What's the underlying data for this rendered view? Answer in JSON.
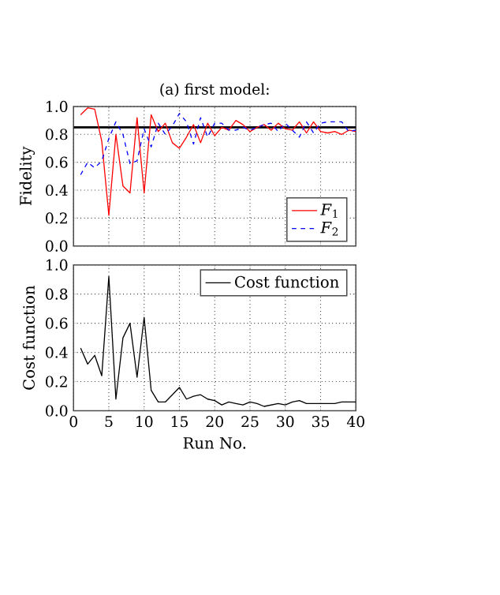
{
  "chart_data": [
    {
      "type": "line",
      "title": "(a) first model:",
      "ylabel": "Fidelity",
      "x": [
        1,
        2,
        3,
        4,
        5,
        6,
        7,
        8,
        9,
        10,
        11,
        12,
        13,
        14,
        15,
        16,
        17,
        18,
        19,
        20,
        21,
        22,
        23,
        24,
        25,
        26,
        27,
        28,
        29,
        30,
        31,
        32,
        33,
        34,
        35,
        36,
        37,
        38,
        39,
        40
      ],
      "series": [
        {
          "name": "*F*$_{1}$",
          "color": "#ff0000",
          "line_style": "solid",
          "values": [
            0.94,
            0.99,
            0.98,
            0.75,
            0.22,
            0.8,
            0.43,
            0.38,
            0.92,
            0.38,
            0.94,
            0.82,
            0.88,
            0.74,
            0.7,
            0.78,
            0.87,
            0.74,
            0.88,
            0.79,
            0.85,
            0.83,
            0.9,
            0.87,
            0.82,
            0.85,
            0.87,
            0.83,
            0.88,
            0.84,
            0.83,
            0.89,
            0.81,
            0.89,
            0.82,
            0.81,
            0.82,
            0.8,
            0.83,
            0.82
          ]
        },
        {
          "name": "*F*$_{2}$",
          "color": "#0000ff",
          "line_style": "dashed",
          "values": [
            0.51,
            0.6,
            0.56,
            0.61,
            0.77,
            0.89,
            0.8,
            0.59,
            0.61,
            0.84,
            0.71,
            0.88,
            0.8,
            0.86,
            0.95,
            0.89,
            0.73,
            0.92,
            0.78,
            0.88,
            0.88,
            0.83,
            0.83,
            0.85,
            0.83,
            0.85,
            0.87,
            0.88,
            0.82,
            0.88,
            0.83,
            0.78,
            0.89,
            0.81,
            0.88,
            0.89,
            0.89,
            0.89,
            0.82,
            0.83
          ]
        }
      ],
      "ref_lines": [
        {
          "axis": "y",
          "value": 0.85,
          "color": "#000000"
        }
      ],
      "xlim": [
        0,
        40
      ],
      "xticks": [
        0,
        5,
        10,
        15,
        20,
        25,
        30,
        35,
        40
      ],
      "ylim": [
        0,
        1
      ],
      "yticks": [
        {
          "value": 0,
          "label": "0.0"
        },
        {
          "value": 0.2,
          "label": "0.2"
        },
        {
          "value": 0.4,
          "label": "0.4"
        },
        {
          "value": 0.6,
          "label": "0.6"
        },
        {
          "value": 0.8,
          "label": "0.8"
        },
        {
          "value": 1,
          "label": "1.0"
        }
      ],
      "grid": true,
      "legend": "bottom right",
      "tick_labels": "y"
    },
    {
      "type": "line",
      "xlabel": "Run No.",
      "ylabel": "Cost function",
      "x": [
        1,
        2,
        3,
        4,
        5,
        6,
        7,
        8,
        9,
        10,
        11,
        12,
        13,
        14,
        15,
        16,
        17,
        18,
        19,
        20,
        21,
        22,
        23,
        24,
        25,
        26,
        27,
        28,
        29,
        30,
        31,
        32,
        33,
        34,
        35,
        36,
        37,
        38,
        39,
        40
      ],
      "series": [
        {
          "name": "Cost function",
          "color": "#000000",
          "line_style": "solid",
          "values": [
            0.43,
            0.32,
            0.38,
            0.24,
            0.92,
            0.08,
            0.5,
            0.6,
            0.23,
            0.64,
            0.14,
            0.06,
            0.06,
            0.11,
            0.16,
            0.08,
            0.1,
            0.11,
            0.08,
            0.07,
            0.04,
            0.06,
            0.05,
            0.04,
            0.06,
            0.05,
            0.03,
            0.04,
            0.05,
            0.04,
            0.06,
            0.07,
            0.05,
            0.05,
            0.05,
            0.05,
            0.05,
            0.06,
            0.06,
            0.06
          ]
        }
      ],
      "xlim": [
        0,
        40
      ],
      "xticks": [
        0,
        5,
        10,
        15,
        20,
        25,
        30,
        35,
        40
      ],
      "ylim": [
        0,
        1
      ],
      "yticks": [
        {
          "value": 0,
          "label": "0.0"
        },
        {
          "value": 0.2,
          "label": "0.2"
        },
        {
          "value": 0.4,
          "label": "0.4"
        },
        {
          "value": 0.6,
          "label": "0.6"
        },
        {
          "value": 0.8,
          "label": "0.8"
        },
        {
          "value": 1,
          "label": "1.0"
        }
      ],
      "grid": true,
      "legend": "top right"
    }
  ]
}
